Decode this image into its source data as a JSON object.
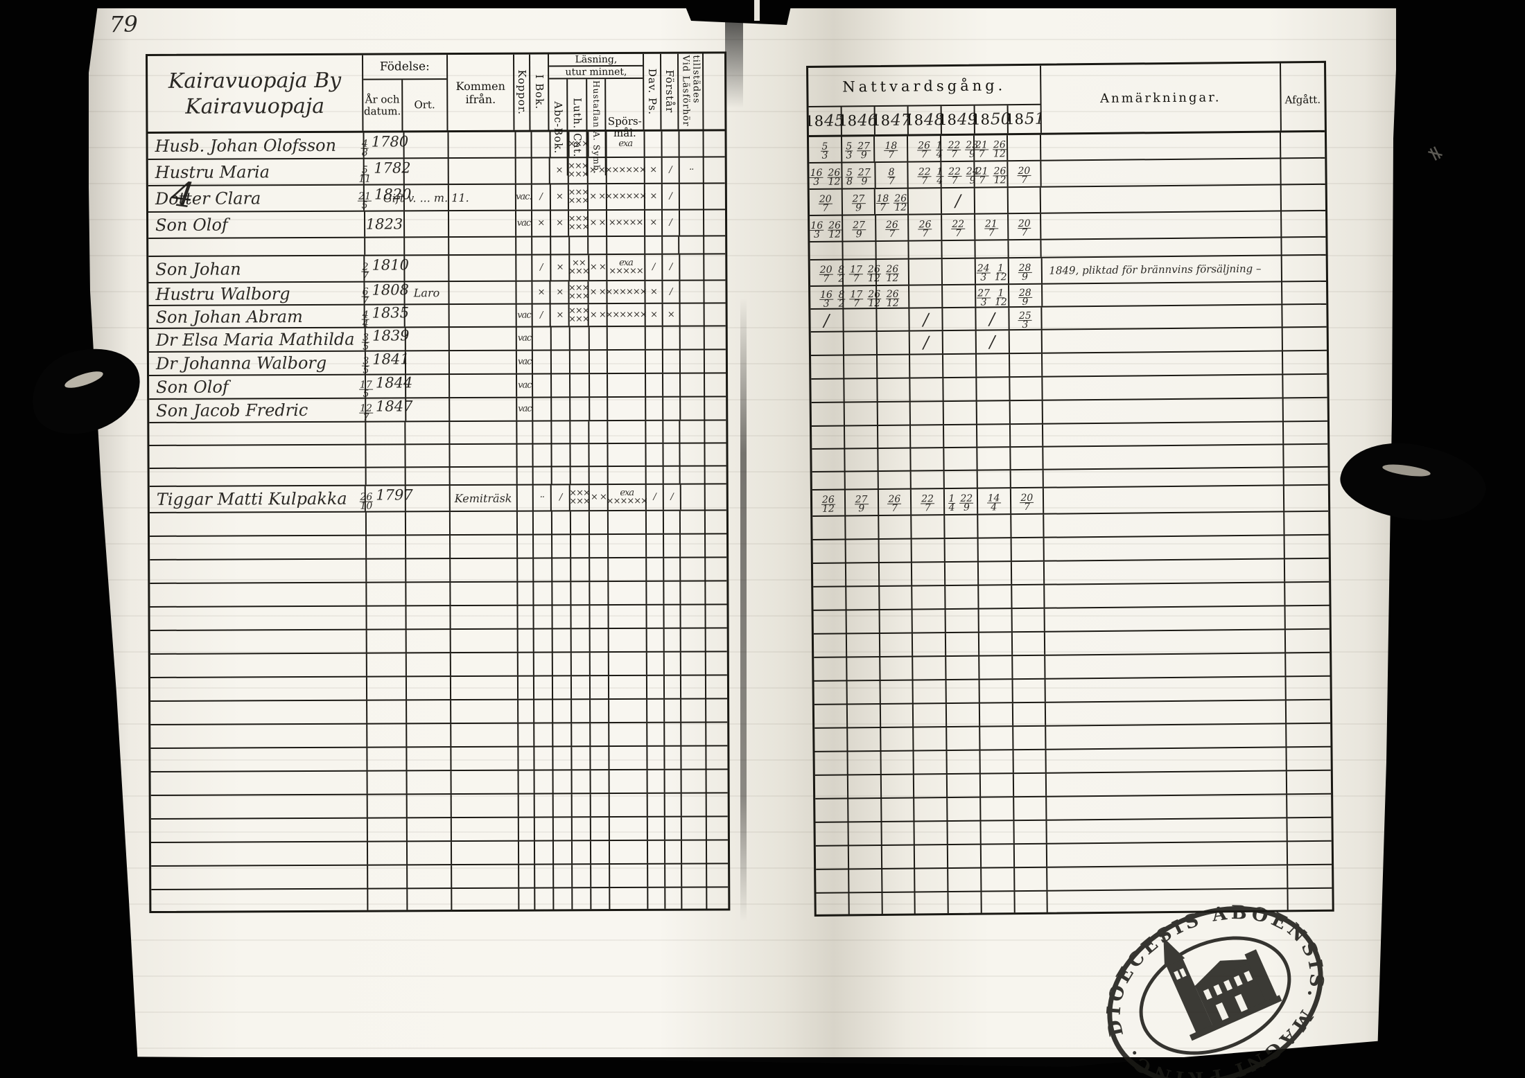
{
  "page": {
    "number": "79",
    "margin_mark": "4"
  },
  "film": {
    "stamp_text": "DIOECESIS ABOENSIS. MAGNI PRINC. FINL."
  },
  "left_table": {
    "village_line1": "Kairavuopaja By",
    "village_line2": "Kairavuopaja",
    "headers": {
      "fodelse": "Födelse:",
      "ar_och_datum": "År och datum.",
      "ort": "Ort.",
      "kommen_ifran": "Kommen ifrån.",
      "koppor": "Koppor.",
      "lasning": "Läsning,",
      "utur_minnet": "utur minnet,",
      "i_bok": "I Bok.",
      "abc_bok": "Abc-Bok.",
      "luth_cat": "Luth. Cat.",
      "hustaflan": "Hustaflan A. Symb.",
      "sporsmal_1": "Spörs-",
      "sporsmal_2": "mål.",
      "dav_ps": "Dav. Ps.",
      "forstar": "Förstår",
      "vid_lasforhor": "Vid Läsförhör tillstädes"
    }
  },
  "right_table": {
    "nattvardsgang": "Nattvardsgång.",
    "years": [
      "1845",
      "1846",
      "1847",
      "1848",
      "1849",
      "1850",
      "1851"
    ],
    "anmarkningar": "Anmärkningar.",
    "afgatt": "Afgått."
  },
  "rows": [
    {
      "name": "Husb. Johan Olofsson",
      "birth": "4/8 1780",
      "ort": "",
      "kommen": "",
      "marks": {
        "luth": "×××",
        "spors": "exa"
      },
      "natt": [
        "5/3",
        "5/3 27/9",
        "18/7",
        "26/7",
        "1/4 22/7 23/9",
        "21/7 26/12",
        ""
      ],
      "anm": ""
    },
    {
      "name": "Hustru Maria",
      "birth": "5/11 1782",
      "ort": "",
      "kommen": "",
      "marks": {
        "abc": "×",
        "luth": "×××\n×××",
        "hust": "× ×",
        "spors": "××××××",
        "dav": "×",
        "forst": "/",
        "vid": "··"
      },
      "natt": [
        "16/3 26/12",
        "5/8 27/9",
        "8/7",
        "22/7",
        "1/4 22/7 24/9",
        "21/7 26/12",
        "20/7"
      ],
      "anm": ""
    },
    {
      "name": "Dotter Clara",
      "birth": "21/5 1820",
      "ort": "Gift v. ... m. 11.",
      "kommen": "",
      "marks": {
        "koppor": "vac.",
        "i_bok": "/",
        "abc": "×",
        "luth": "×××\n×××",
        "hust": "× ×",
        "spors": "××××××",
        "dav": "×",
        "forst": "/"
      },
      "natt": [
        "20/7",
        "27/9",
        "18/7 26/12",
        "",
        "/",
        "",
        ""
      ],
      "anm": ""
    },
    {
      "name": "Son Olof",
      "birth": "1823",
      "ort": "",
      "kommen": "",
      "marks": {
        "koppor": "vac",
        "i_bok": "×",
        "abc": "×",
        "luth": "×××\n×××",
        "hust": "× ×",
        "spors": "×××××",
        "dav": "×",
        "forst": "/"
      },
      "natt": [
        "16/3 26/12",
        "27/9",
        "26/7",
        "26/7",
        "22/7",
        "21/7",
        "20/7"
      ],
      "anm": ""
    },
    {
      "name": "Son Johan",
      "birth": "2/7 1810",
      "ort": "",
      "kommen": "",
      "marks": {
        "i_bok": "/",
        "abc": "×",
        "luth": "××\n×××",
        "hust": "× ×",
        "spors": "exa\n×××××",
        "dav": "/",
        "forst": "/"
      },
      "natt": [
        "20/7",
        "8/2 17/7 26/12",
        "26/12",
        "",
        "",
        "24/3 1/12",
        "28/9"
      ],
      "anm": "1849, pliktad för brännvins försäljning –"
    },
    {
      "name": "Hustru Walborg",
      "birth": "6/7 1808",
      "ort": "Laro",
      "kommen": "",
      "marks": {
        "i_bok": "×",
        "abc": "×",
        "luth": "×××\n×××",
        "hust": "× ×",
        "spors": "××××××",
        "dav": "×",
        "forst": "/"
      },
      "natt": [
        "16/3",
        "8/2 17/7 26/12",
        "26/12",
        "",
        "",
        "27/3 1/12",
        "28/9"
      ],
      "anm": ""
    },
    {
      "name": "Son Johan Abram",
      "birth": "4/4 1835",
      "ort": "",
      "kommen": "",
      "marks": {
        "koppor": "vac",
        "i_bok": "/",
        "abc": "×",
        "luth": "×××\n×××",
        "hust": "× ×",
        "spors": "××××××",
        "dav": "×",
        "forst": "×"
      },
      "natt": [
        "/",
        "",
        "",
        "/",
        "",
        "/",
        "25/3"
      ],
      "anm": ""
    },
    {
      "name": "Dr Elsa Maria Mathilda",
      "birth": "3/5 1839",
      "ort": "",
      "kommen": "",
      "marks": {
        "koppor": "vac"
      },
      "natt": [
        "",
        "",
        "",
        "/",
        "",
        "/",
        ""
      ],
      "anm": ""
    },
    {
      "name": "Dr Johanna Walborg",
      "birth": "3/5 1841",
      "ort": "",
      "kommen": "",
      "marks": {
        "koppor": "vac"
      },
      "natt": [
        "",
        "",
        "",
        "",
        "",
        "",
        ""
      ],
      "anm": ""
    },
    {
      "name": "Son Olof",
      "birth": "17/5 1844",
      "ort": "",
      "kommen": "",
      "marks": {
        "koppor": "vac"
      },
      "natt": [
        "",
        "",
        "",
        "",
        "",
        "",
        ""
      ],
      "anm": ""
    },
    {
      "name": "Son Jacob Fredric",
      "birth": "12/7 1847",
      "ort": "",
      "kommen": "",
      "marks": {
        "koppor": "vac"
      },
      "natt": [
        "",
        "",
        "",
        "",
        "",
        "",
        ""
      ],
      "anm": ""
    },
    {
      "name": "Tiggar Matti Kulpakka",
      "birth": "26/10 1797",
      "ort": "",
      "kommen": "Kemiträsk",
      "marks": {
        "i_bok": "··",
        "abc": "/",
        "luth": "×××\n×××",
        "hust": "× ×",
        "spors": "exa\n××××××",
        "dav": "/",
        "forst": "/"
      },
      "natt": [
        "26/12",
        "27/9",
        "26/7",
        "22/7",
        "1/4 22/9",
        "14/4",
        "20/7"
      ],
      "anm": ""
    }
  ]
}
